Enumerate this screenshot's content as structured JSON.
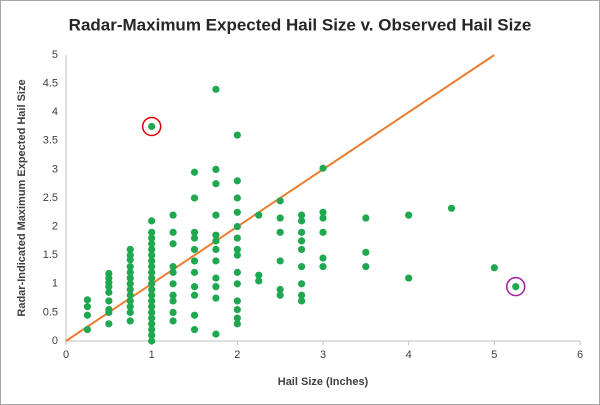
{
  "chart_data": {
    "type": "scatter",
    "title": "Radar-Maximum Expected Hail Size v. Observed Hail Size",
    "x_label": "Hail Size (Inches)",
    "y_label": "Radar-Indicated Maximum Expected Hail Size",
    "xlim": [
      0,
      6
    ],
    "xticks": [
      0,
      1,
      2,
      3,
      4,
      5,
      6
    ],
    "ylim": [
      0,
      5
    ],
    "yticks": [
      0,
      0.5,
      1,
      1.5,
      2,
      2.5,
      3,
      3.5,
      4,
      4.5,
      5
    ],
    "grid": false,
    "series": [
      {
        "color": "#1fa84f",
        "x": [
          0.25,
          0.25,
          0.25,
          0.25,
          0.5,
          0.5,
          0.5,
          0.5,
          0.5,
          0.5,
          0.5,
          0.5,
          0.5,
          0.75,
          0.75,
          0.75,
          0.75,
          0.75,
          0.75,
          0.75,
          0.75,
          0.75,
          0.75,
          0.75,
          0.75,
          0.75,
          1,
          1,
          1,
          1,
          1,
          1,
          1,
          1,
          1,
          1,
          1,
          1,
          1,
          1,
          1,
          1,
          1,
          1,
          1,
          1,
          1,
          1,
          1.25,
          1.25,
          1.25,
          1.25,
          1.25,
          1.25,
          1.25,
          1.25,
          1.25,
          1.25,
          1.5,
          1.5,
          1.5,
          1.5,
          1.5,
          1.5,
          1.5,
          1.5,
          1.5,
          1.5,
          1.5,
          1.75,
          1.75,
          1.75,
          1.75,
          1.75,
          1.75,
          1.75,
          1.75,
          1.75,
          1.75,
          1.75,
          1.75,
          2,
          2,
          2,
          2,
          2,
          2,
          2,
          2,
          2,
          2,
          2,
          2,
          2,
          2,
          2.25,
          2.25,
          2.25,
          2.5,
          2.5,
          2.5,
          2.5,
          2.5,
          2.5,
          2.75,
          2.75,
          2.75,
          2.75,
          2.75,
          2.75,
          2.75,
          2.75,
          2.75,
          3,
          3,
          3,
          3,
          3,
          3,
          3.5,
          3.5,
          3.5,
          4,
          4,
          4.5,
          5,
          5.25
        ],
        "y": [
          0.72,
          0.6,
          0.45,
          0.2,
          1.18,
          1.1,
          1.02,
          0.95,
          0.85,
          0.7,
          0.55,
          0.5,
          0.3,
          1.6,
          1.5,
          1.42,
          1.3,
          1.2,
          1.1,
          1.0,
          0.9,
          0.8,
          0.7,
          0.6,
          0.5,
          0.35,
          3.75,
          2.1,
          1.9,
          1.8,
          1.7,
          1.6,
          1.5,
          1.4,
          1.3,
          1.2,
          1.1,
          1.0,
          0.9,
          0.8,
          0.7,
          0.6,
          0.5,
          0.4,
          0.3,
          0.2,
          0.1,
          0,
          2.2,
          1.9,
          1.7,
          1.3,
          1.2,
          1.0,
          0.8,
          0.7,
          0.5,
          0.35,
          2.95,
          2.5,
          1.9,
          1.8,
          1.6,
          1.4,
          1.2,
          0.95,
          0.8,
          0.45,
          0.2,
          4.4,
          3.0,
          2.75,
          2.2,
          1.85,
          1.75,
          1.6,
          1.4,
          1.1,
          0.95,
          0.75,
          0.12,
          3.6,
          2.8,
          2.5,
          2.25,
          2.0,
          1.8,
          1.6,
          1.5,
          1.2,
          1.0,
          0.7,
          0.55,
          0.4,
          0.3,
          2.2,
          1.15,
          1.05,
          2.45,
          2.15,
          1.9,
          1.4,
          0.9,
          0.8,
          2.2,
          2.1,
          1.9,
          1.75,
          1.6,
          1.3,
          1.0,
          0.8,
          0.7,
          3.02,
          2.25,
          2.15,
          1.9,
          1.45,
          1.3,
          2.15,
          1.55,
          1.3,
          2.2,
          1.1,
          2.32,
          1.28,
          0.95
        ]
      }
    ],
    "reference_line": {
      "x": [
        0,
        5
      ],
      "y": [
        0,
        5
      ],
      "color": "#ed7d31"
    },
    "highlights": [
      {
        "x": 1,
        "y": 3.75,
        "color": "#e00000"
      },
      {
        "x": 5.25,
        "y": 0.95,
        "color": "#a020a0"
      }
    ]
  }
}
